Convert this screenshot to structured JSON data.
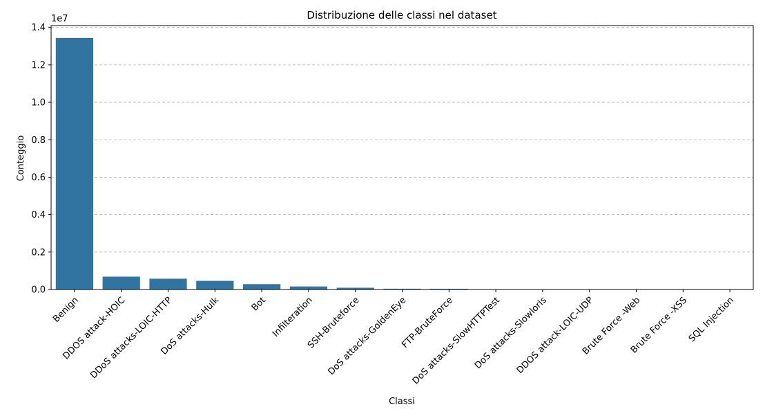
{
  "chart_data": {
    "type": "bar",
    "title": "Distribuzione delle classi nel dataset",
    "xlabel": "Classi",
    "ylabel": "Conteggio",
    "y_scale_label": "1e7",
    "y_tick_labels": [
      "0.0",
      "0.2",
      "0.4",
      "0.6",
      "0.8",
      "1.0",
      "1.2",
      "1.4"
    ],
    "y_tick_values": [
      0,
      0.2,
      0.4,
      0.6,
      0.8,
      1.0,
      1.2,
      1.4
    ],
    "ylim": [
      0,
      1.41
    ],
    "units_multiplier": 10000000,
    "grid": "y-dashed",
    "bar_color": "#3274a1",
    "grid_color": "#b0b0b0",
    "categories": [
      "Benign",
      "DDOS attack-HOIC",
      "DDoS attacks-LOIC-HTTP",
      "DoS attacks-Hulk",
      "Bot",
      "Infilteration",
      "SSH-Bruteforce",
      "DoS attacks-GoldenEye",
      "FTP-BruteForce",
      "DoS attacks-SlowHTTPTest",
      "DoS attacks-Slowloris",
      "DDOS attack-LOIC-UDP",
      "Brute Force -Web",
      "Brute Force -XSS",
      "SQL Injection"
    ],
    "values": [
      13440000,
      686000,
      576000,
      461000,
      286000,
      161000,
      94000,
      41000,
      39000,
      14000,
      10000,
      1700,
      600,
      230,
      90
    ]
  }
}
